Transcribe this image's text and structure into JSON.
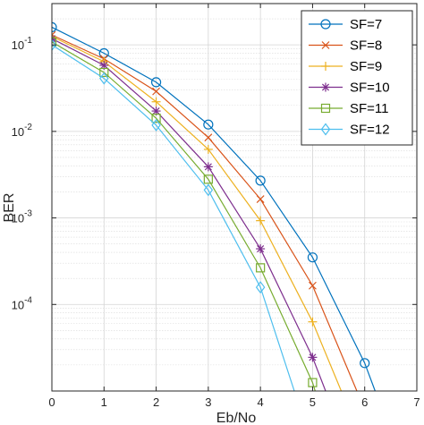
{
  "chart_data": {
    "type": "line",
    "xlabel": "Eb/No",
    "ylabel": "BER",
    "xlim": [
      0,
      7
    ],
    "ylim": [
      1e-05,
      0.3
    ],
    "yscale": "log",
    "x_ticks": [
      0,
      1,
      2,
      3,
      4,
      5,
      6,
      7
    ],
    "y_ticks": [
      {
        "value": 0.1,
        "base": "10",
        "exp": "-1"
      },
      {
        "value": 0.01,
        "base": "10",
        "exp": "-2"
      },
      {
        "value": 0.001,
        "base": "10",
        "exp": "-3"
      },
      {
        "value": 0.0001,
        "base": "10",
        "exp": "-4"
      }
    ],
    "grid": true,
    "minor_grid": true,
    "legend_position": "top-right",
    "series": [
      {
        "name": "SF=7",
        "color": "#0072BD",
        "marker": "circle",
        "x": [
          0,
          1,
          2,
          3,
          4,
          5,
          6,
          6.2
        ],
        "y": [
          0.16,
          0.08,
          0.037,
          0.012,
          0.0027,
          0.00035,
          2.1e-05,
          1e-05
        ]
      },
      {
        "name": "SF=8",
        "color": "#D95319",
        "marker": "x",
        "x": [
          0,
          1,
          2,
          3,
          4,
          5,
          5.85
        ],
        "y": [
          0.13,
          0.069,
          0.029,
          0.0085,
          0.00165,
          0.000165,
          1e-05
        ]
      },
      {
        "name": "SF=9",
        "color": "#EDB120",
        "marker": "plus",
        "x": [
          0,
          1,
          2,
          3,
          4,
          5,
          5.55
        ],
        "y": [
          0.125,
          0.064,
          0.022,
          0.0062,
          0.00093,
          6.3e-05,
          1e-05
        ]
      },
      {
        "name": "SF=10",
        "color": "#7E2F8E",
        "marker": "asterisk",
        "x": [
          0,
          1,
          2,
          3,
          4,
          5,
          5.25
        ],
        "y": [
          0.118,
          0.058,
          0.0172,
          0.0039,
          0.00044,
          2.45e-05,
          1e-05
        ]
      },
      {
        "name": "SF=11",
        "color": "#77AC30",
        "marker": "square",
        "x": [
          0,
          1,
          2,
          3,
          4,
          5,
          5.05
        ],
        "y": [
          0.108,
          0.048,
          0.0142,
          0.0028,
          0.000265,
          1.25e-05,
          1e-05
        ]
      },
      {
        "name": "SF=12",
        "color": "#4DBEEE",
        "marker": "diamond",
        "x": [
          0,
          1,
          2,
          3,
          4,
          4.65
        ],
        "y": [
          0.1,
          0.041,
          0.0118,
          0.0021,
          0.000158,
          1e-05
        ]
      }
    ]
  }
}
